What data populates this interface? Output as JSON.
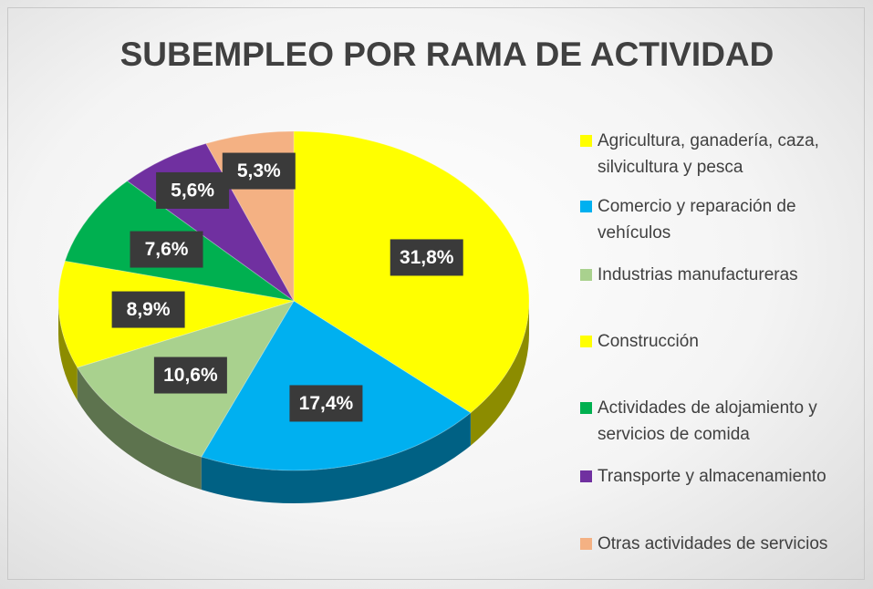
{
  "chart_data": {
    "type": "pie",
    "title": "SUBEMPLEO POR RAMA DE ACTIVIDAD",
    "categories": [
      "Agricultura, ganadería, caza, silvicultura y pesca",
      "Comercio y reparación de vehículos",
      "Industrias manufactureras",
      "Construcción",
      "Actividades de alojamiento y servicios de comida",
      "Transporte y almacenamiento",
      "Otras actividades de servicios"
    ],
    "values": [
      31.8,
      17.4,
      10.6,
      8.9,
      7.6,
      5.6,
      5.3
    ],
    "value_labels": [
      "31,8%",
      "17,4%",
      "10,6%",
      "8,9%",
      "7,6%",
      "5,6%",
      "5,3%"
    ],
    "colors": [
      "#ffff00",
      "#00b0f0",
      "#a9d18e",
      "#ffff00",
      "#00b050",
      "#7030a0",
      "#f4b183"
    ],
    "legend": "right"
  }
}
